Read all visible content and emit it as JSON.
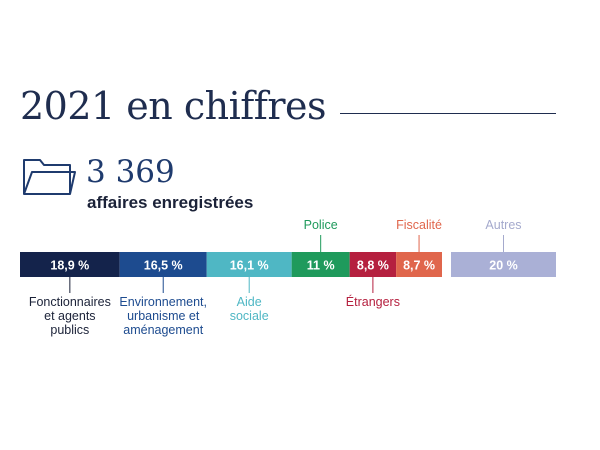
{
  "header": {
    "title": "2021 en chiffres",
    "case_count": "3 369",
    "case_count_label": "affaires enregistrées"
  },
  "icons": {
    "folder": "folder-icon"
  },
  "colors": {
    "title": "#1f2d4f",
    "accent": "#1f3b6e"
  },
  "chart_data": {
    "type": "bar",
    "orientation": "stacked-horizontal",
    "unit": "%",
    "segments": [
      {
        "name": [
          "Fonctionnaires",
          "et agents",
          "publics"
        ],
        "value": 18.9,
        "label": "18,9 %",
        "color": "#14234b",
        "label_position": "below",
        "label_color": "#1b2238"
      },
      {
        "name": [
          "Environnement,",
          "urbanisme et",
          "aménagement"
        ],
        "value": 16.5,
        "label": "16,5 %",
        "color": "#1d4b8f",
        "label_position": "below",
        "label_color": "#1d4b8f"
      },
      {
        "name": [
          "Aide",
          "sociale"
        ],
        "value": 16.1,
        "label": "16,1 %",
        "color": "#4fb7c4",
        "label_position": "below",
        "label_color": "#4fb7c4"
      },
      {
        "name": [
          "Police"
        ],
        "value": 11,
        "label": "11 %",
        "color": "#1f9a5c",
        "label_position": "above",
        "label_color": "#1f9a5c"
      },
      {
        "name": [
          "Étrangers"
        ],
        "value": 8.8,
        "label": "8,8 %",
        "color": "#b5203f",
        "label_position": "below",
        "label_color": "#b5203f"
      },
      {
        "name": [
          "Fiscalité"
        ],
        "value": 8.7,
        "label": "8,7 %",
        "color": "#e0664c",
        "label_position": "above",
        "label_color": "#e0664c"
      },
      {
        "name": [
          "Autres"
        ],
        "value": 20,
        "label": "20 %",
        "color": "#aab0d6",
        "label_position": "above",
        "label_color": "#a5aacd",
        "separated": true
      }
    ]
  }
}
